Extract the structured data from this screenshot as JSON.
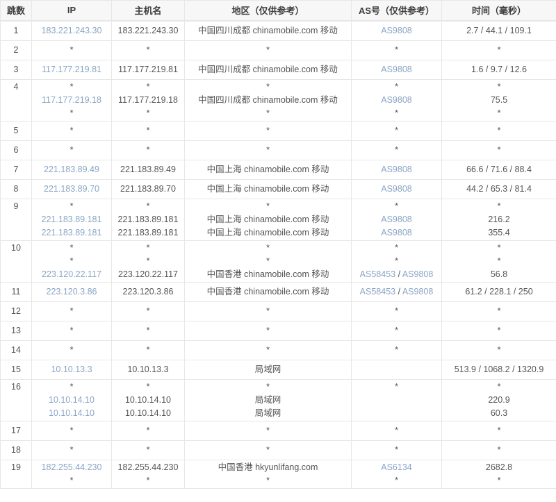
{
  "colors": {
    "link": "#8aa5c6",
    "text": "#555555",
    "border": "#e7e7e7",
    "header_bg": "#f7f7f7"
  },
  "table": {
    "columns": [
      {
        "key": "hop",
        "label": "跳数"
      },
      {
        "key": "ip",
        "label": "IP"
      },
      {
        "key": "host",
        "label": "主机名"
      },
      {
        "key": "region",
        "label": "地区（仅供参考）"
      },
      {
        "key": "asn",
        "label": "AS号（仅供参考）"
      },
      {
        "key": "time",
        "label": "时间（毫秒）"
      }
    ],
    "rows": [
      {
        "hop": "1",
        "lines": [
          {
            "ip": "183.221.243.30",
            "host": "183.221.243.30",
            "region": "中国四川成都 chinamobile.com 移动",
            "asn": "AS9808",
            "time": "2.7 / 44.1 / 109.1"
          }
        ]
      },
      {
        "hop": "2",
        "lines": [
          {
            "ip": "*",
            "host": "*",
            "region": "*",
            "asn": "*",
            "time": "*"
          }
        ]
      },
      {
        "hop": "3",
        "lines": [
          {
            "ip": "117.177.219.81",
            "host": "117.177.219.81",
            "region": "中国四川成都 chinamobile.com 移动",
            "asn": "AS9808",
            "time": "1.6 / 9.7 / 12.6"
          }
        ]
      },
      {
        "hop": "4",
        "lines": [
          {
            "ip": "*",
            "host": "*",
            "region": "*",
            "asn": "*",
            "time": "*"
          },
          {
            "ip": "117.177.219.18",
            "host": "117.177.219.18",
            "region": "中国四川成都 chinamobile.com 移动",
            "asn": "AS9808",
            "time": "75.5"
          },
          {
            "ip": "*",
            "host": "*",
            "region": "*",
            "asn": "*",
            "time": "*"
          }
        ]
      },
      {
        "hop": "5",
        "lines": [
          {
            "ip": "*",
            "host": "*",
            "region": "*",
            "asn": "*",
            "time": "*"
          }
        ]
      },
      {
        "hop": "6",
        "lines": [
          {
            "ip": "*",
            "host": "*",
            "region": "*",
            "asn": "*",
            "time": "*"
          }
        ]
      },
      {
        "hop": "7",
        "lines": [
          {
            "ip": "221.183.89.49",
            "host": "221.183.89.49",
            "region": "中国上海 chinamobile.com 移动",
            "asn": "AS9808",
            "time": "66.6 / 71.6 / 88.4"
          }
        ]
      },
      {
        "hop": "8",
        "lines": [
          {
            "ip": "221.183.89.70",
            "host": "221.183.89.70",
            "region": "中国上海 chinamobile.com 移动",
            "asn": "AS9808",
            "time": "44.2 / 65.3 / 81.4"
          }
        ]
      },
      {
        "hop": "9",
        "lines": [
          {
            "ip": "*",
            "host": "*",
            "region": "*",
            "asn": "*",
            "time": "*"
          },
          {
            "ip": "221.183.89.181",
            "host": "221.183.89.181",
            "region": "中国上海 chinamobile.com 移动",
            "asn": "AS9808",
            "time": "216.2"
          },
          {
            "ip": "221.183.89.181",
            "host": "221.183.89.181",
            "region": "中国上海 chinamobile.com 移动",
            "asn": "AS9808",
            "time": "355.4"
          }
        ]
      },
      {
        "hop": "10",
        "lines": [
          {
            "ip": "*",
            "host": "*",
            "region": "*",
            "asn": "*",
            "time": "*"
          },
          {
            "ip": "*",
            "host": "*",
            "region": "*",
            "asn": "*",
            "time": "*"
          },
          {
            "ip": "223.120.22.117",
            "host": "223.120.22.117",
            "region": "中国香港 chinamobile.com 移动",
            "asn": "AS58453 / AS9808",
            "time": "56.8"
          }
        ]
      },
      {
        "hop": "11",
        "lines": [
          {
            "ip": "223.120.3.86",
            "host": "223.120.3.86",
            "region": "中国香港 chinamobile.com 移动",
            "asn": "AS58453 / AS9808",
            "time": "61.2 / 228.1 / 250"
          }
        ]
      },
      {
        "hop": "12",
        "lines": [
          {
            "ip": "*",
            "host": "*",
            "region": "*",
            "asn": "*",
            "time": "*"
          }
        ]
      },
      {
        "hop": "13",
        "lines": [
          {
            "ip": "*",
            "host": "*",
            "region": "*",
            "asn": "*",
            "time": "*"
          }
        ]
      },
      {
        "hop": "14",
        "lines": [
          {
            "ip": "*",
            "host": "*",
            "region": "*",
            "asn": "*",
            "time": "*"
          }
        ]
      },
      {
        "hop": "15",
        "lines": [
          {
            "ip": "10.10.13.3",
            "host": "10.10.13.3",
            "region": "局域网",
            "asn": "",
            "time": "513.9 / 1068.2 / 1320.9"
          }
        ]
      },
      {
        "hop": "16",
        "lines": [
          {
            "ip": "*",
            "host": "*",
            "region": "*",
            "asn": "*",
            "time": "*"
          },
          {
            "ip": "10.10.14.10",
            "host": "10.10.14.10",
            "region": "局域网",
            "asn": "",
            "time": "220.9"
          },
          {
            "ip": "10.10.14.10",
            "host": "10.10.14.10",
            "region": "局域网",
            "asn": "",
            "time": "60.3"
          }
        ]
      },
      {
        "hop": "17",
        "lines": [
          {
            "ip": "*",
            "host": "*",
            "region": "*",
            "asn": "*",
            "time": "*"
          }
        ]
      },
      {
        "hop": "18",
        "lines": [
          {
            "ip": "*",
            "host": "*",
            "region": "*",
            "asn": "*",
            "time": "*"
          }
        ]
      },
      {
        "hop": "19",
        "lines": [
          {
            "ip": "182.255.44.230",
            "host": "182.255.44.230",
            "region": "中国香港 hkyunlifang.com",
            "asn": "AS6134",
            "time": "2682.8"
          },
          {
            "ip": "*",
            "host": "*",
            "region": "*",
            "asn": "*",
            "time": "*"
          }
        ]
      }
    ]
  }
}
